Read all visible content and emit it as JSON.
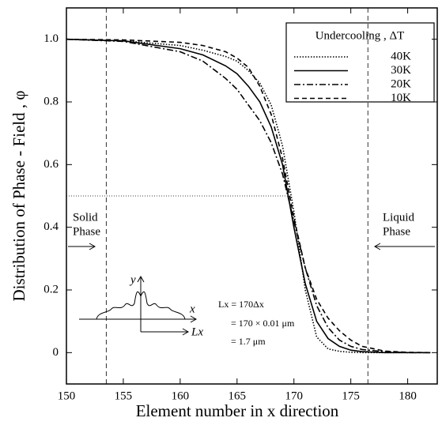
{
  "chart_data": {
    "type": "line",
    "x_label": "Element number in x direction",
    "y_label": "Distribution of Phase - Field , φ",
    "xlim": [
      150,
      182.6
    ],
    "ylim": [
      -0.1,
      1.1
    ],
    "xticks": [
      150,
      155,
      160,
      165,
      170,
      175,
      180
    ],
    "yticks": [
      0,
      0.2,
      0.4,
      0.6,
      0.8,
      {
        "value": 1,
        "label": "1.0"
      }
    ],
    "legend_title": "Undercooling , ΔT",
    "legend_position": "upper right",
    "x": [
      150,
      155,
      160,
      162,
      164,
      165,
      166,
      167,
      168,
      169,
      170,
      171,
      172,
      173,
      174,
      175,
      176,
      178,
      180,
      182
    ],
    "series": [
      {
        "name": "40K",
        "color": "#000",
        "dash": "1.5 2",
        "values": [
          1,
          0.995,
          0.98,
          0.965,
          0.945,
          0.93,
          0.9,
          0.86,
          0.79,
          0.66,
          0.45,
          0.2,
          0.05,
          0.012,
          0.004,
          0.001,
          0,
          0,
          0,
          0
        ]
      },
      {
        "name": "30K",
        "color": "#000",
        "dash": "",
        "values": [
          1,
          0.995,
          0.97,
          0.95,
          0.915,
          0.89,
          0.85,
          0.8,
          0.72,
          0.6,
          0.4,
          0.22,
          0.1,
          0.045,
          0.02,
          0.008,
          0.003,
          0,
          0,
          0
        ]
      },
      {
        "name": "20K",
        "color": "#000",
        "dash": "8 3 2 3",
        "values": [
          1,
          0.993,
          0.96,
          0.93,
          0.875,
          0.84,
          0.79,
          0.74,
          0.67,
          0.57,
          0.42,
          0.27,
          0.15,
          0.08,
          0.04,
          0.02,
          0.01,
          0.003,
          0,
          0
        ]
      },
      {
        "name": "10K",
        "color": "#000",
        "dash": "6 4",
        "values": [
          1,
          0.998,
          0.99,
          0.98,
          0.96,
          0.94,
          0.91,
          0.85,
          0.76,
          0.62,
          0.43,
          0.27,
          0.17,
          0.11,
          0.07,
          0.04,
          0.02,
          0.005,
          0.001,
          0
        ]
      }
    ],
    "vlines": [
      153.5,
      176.5
    ],
    "hline": 0.5,
    "solid_label": [
      "Solid",
      "Phase"
    ],
    "liquid_label": [
      "Liquid",
      "Phase"
    ],
    "inset_labels": {
      "y": "y",
      "x": "x",
      "lx": "Lx"
    },
    "length_note": [
      "Lx = 170Δx",
      "= 170 × 0.01 μm",
      "= 1.7 μm"
    ]
  }
}
